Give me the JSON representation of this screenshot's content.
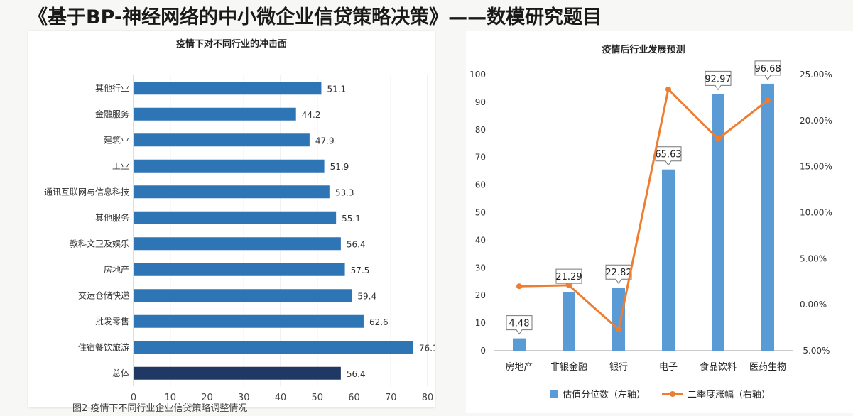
{
  "slide": {
    "title": "《基于BP-神经网络的中小微企业信贷策略决策》——数模研究题目",
    "caption": "图2 疫情下不同行业企业信贷策略调整情况"
  },
  "chart_data": [
    {
      "type": "bar",
      "orientation": "horizontal",
      "title": "疫情下对不同行业的冲击面",
      "categories": [
        "其他行业",
        "金融服务",
        "建筑业",
        "工业",
        "通讯互联网与信息科技",
        "其他服务",
        "教科文卫及娱乐",
        "房地产",
        "交运仓储快递",
        "批发零售",
        "住宿餐饮旅游",
        "总体"
      ],
      "values": [
        51.1,
        44.2,
        47.9,
        51.9,
        53.3,
        55.1,
        56.4,
        57.5,
        59.4,
        62.6,
        76.1,
        56.4
      ],
      "xlim": [
        0,
        80
      ],
      "xticks": [
        0,
        10,
        20,
        30,
        40,
        50,
        60,
        70,
        80
      ],
      "grid": true,
      "colors": {
        "bar": "#2e75b6",
        "highlight": "#1f3864"
      },
      "highlight_category": "总体"
    },
    {
      "type": "bar+line",
      "title": "疫情后行业发展预测",
      "categories": [
        "房地产",
        "非银金融",
        "银行",
        "电子",
        "食品饮料",
        "医药生物"
      ],
      "series": [
        {
          "name": "估值分位数（左轴）",
          "type": "bar",
          "axis": "left",
          "values": [
            4.48,
            21.29,
            22.82,
            65.63,
            92.97,
            96.68
          ],
          "color": "#5b9bd5"
        },
        {
          "name": "二季度涨幅（右轴）",
          "type": "line",
          "axis": "right",
          "values": [
            0.02,
            0.021,
            -0.027,
            0.234,
            0.18,
            0.222
          ],
          "color": "#ed7d31"
        }
      ],
      "ylim_left": [
        0,
        100
      ],
      "yticks_left": [
        0,
        10,
        20,
        30,
        40,
        50,
        60,
        70,
        80,
        90,
        100
      ],
      "ylim_right": [
        -0.05,
        0.25
      ],
      "yticks_right": [
        "-5.00%",
        "0.00%",
        "5.00%",
        "10.00%",
        "15.00%",
        "20.00%",
        "25.00%"
      ],
      "legend_position": "bottom"
    }
  ]
}
